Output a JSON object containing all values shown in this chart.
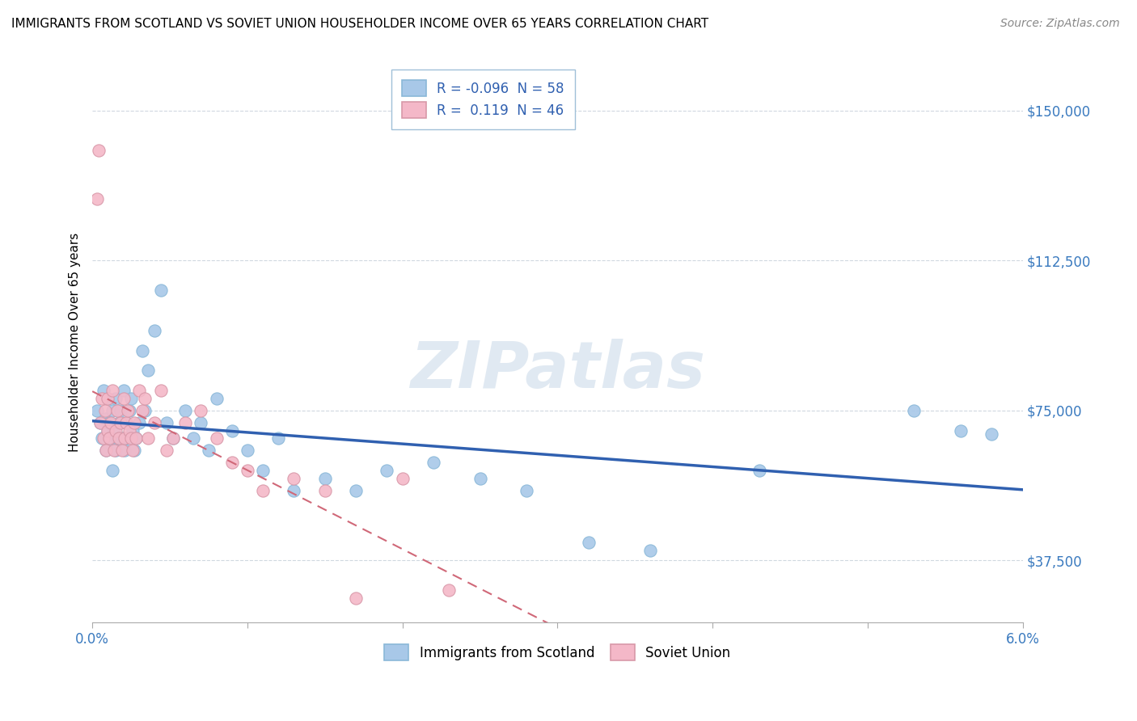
{
  "title": "IMMIGRANTS FROM SCOTLAND VS SOVIET UNION HOUSEHOLDER INCOME OVER 65 YEARS CORRELATION CHART",
  "source": "Source: ZipAtlas.com",
  "ylabel": "Householder Income Over 65 years",
  "xlim": [
    0.0,
    0.06
  ],
  "ylim": [
    22000,
    162000
  ],
  "yticks": [
    37500,
    75000,
    112500,
    150000
  ],
  "ytick_labels": [
    "$37,500",
    "$75,000",
    "$112,500",
    "$150,000"
  ],
  "scotland_color": "#a8c8e8",
  "soviet_color": "#f4b8c8",
  "scotland_line_color": "#3060b0",
  "soviet_line_color": "#d06878",
  "legend_R_scotland": "-0.096",
  "legend_N_scotland": "58",
  "legend_R_soviet": "0.119",
  "legend_N_soviet": "46",
  "scotland_points_x": [
    0.0003,
    0.0005,
    0.0006,
    0.0007,
    0.0008,
    0.0009,
    0.001,
    0.001,
    0.0011,
    0.0012,
    0.0013,
    0.0013,
    0.0014,
    0.0015,
    0.0015,
    0.0016,
    0.0017,
    0.0018,
    0.0019,
    0.002,
    0.0021,
    0.0022,
    0.0023,
    0.0024,
    0.0025,
    0.0026,
    0.0027,
    0.0028,
    0.003,
    0.0032,
    0.0034,
    0.0036,
    0.004,
    0.0044,
    0.0048,
    0.0052,
    0.006,
    0.0065,
    0.007,
    0.0075,
    0.008,
    0.009,
    0.01,
    0.011,
    0.012,
    0.013,
    0.015,
    0.017,
    0.019,
    0.022,
    0.025,
    0.028,
    0.032,
    0.036,
    0.043,
    0.053,
    0.056,
    0.058
  ],
  "scotland_points_y": [
    75000,
    72000,
    68000,
    80000,
    73000,
    65000,
    70000,
    78000,
    72000,
    68000,
    75000,
    60000,
    70000,
    78000,
    65000,
    68000,
    72000,
    75000,
    68000,
    80000,
    65000,
    72000,
    68000,
    75000,
    78000,
    70000,
    65000,
    68000,
    72000,
    90000,
    75000,
    85000,
    95000,
    105000,
    72000,
    68000,
    75000,
    68000,
    72000,
    65000,
    78000,
    70000,
    65000,
    60000,
    68000,
    55000,
    58000,
    55000,
    60000,
    62000,
    58000,
    55000,
    42000,
    40000,
    60000,
    75000,
    70000,
    69000
  ],
  "soviet_points_x": [
    0.0003,
    0.0004,
    0.0005,
    0.0006,
    0.0007,
    0.0008,
    0.0009,
    0.001,
    0.001,
    0.0011,
    0.0012,
    0.0013,
    0.0014,
    0.0015,
    0.0016,
    0.0017,
    0.0018,
    0.0019,
    0.002,
    0.0021,
    0.0022,
    0.0023,
    0.0024,
    0.0025,
    0.0026,
    0.0027,
    0.0028,
    0.003,
    0.0032,
    0.0034,
    0.0036,
    0.004,
    0.0044,
    0.0048,
    0.0052,
    0.006,
    0.007,
    0.008,
    0.009,
    0.01,
    0.011,
    0.013,
    0.015,
    0.017,
    0.02,
    0.023
  ],
  "soviet_points_y": [
    128000,
    140000,
    72000,
    78000,
    68000,
    75000,
    65000,
    70000,
    78000,
    68000,
    72000,
    80000,
    65000,
    70000,
    75000,
    68000,
    72000,
    65000,
    78000,
    68000,
    72000,
    75000,
    70000,
    68000,
    65000,
    72000,
    68000,
    80000,
    75000,
    78000,
    68000,
    72000,
    80000,
    65000,
    68000,
    72000,
    75000,
    68000,
    62000,
    60000,
    55000,
    58000,
    55000,
    28000,
    58000,
    30000
  ]
}
